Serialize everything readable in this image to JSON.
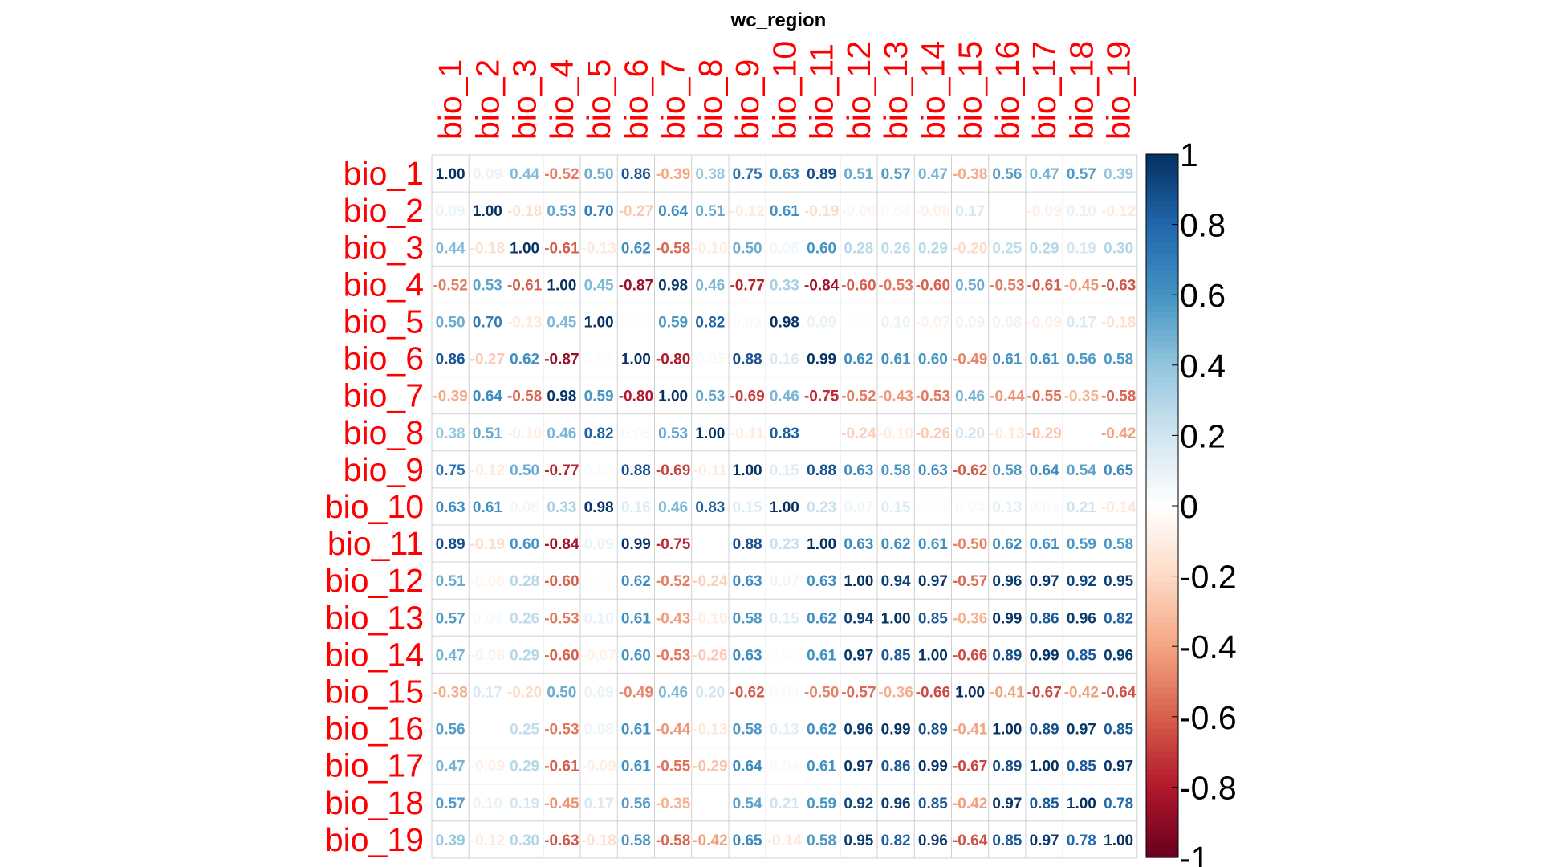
{
  "chart_data": {
    "type": "heatmap",
    "title": "wc_region",
    "labels": [
      "bio_1",
      "bio_2",
      "bio_3",
      "bio_4",
      "bio_5",
      "bio_6",
      "bio_7",
      "bio_8",
      "bio_9",
      "bio_10",
      "bio_11",
      "bio_12",
      "bio_13",
      "bio_14",
      "bio_15",
      "bio_16",
      "bio_17",
      "bio_18",
      "bio_19"
    ],
    "matrix": [
      [
        1.0,
        0.09,
        0.44,
        -0.52,
        0.5,
        0.86,
        -0.39,
        0.38,
        0.75,
        0.63,
        0.89,
        0.51,
        0.57,
        0.47,
        -0.38,
        0.56,
        0.47,
        0.57,
        0.39
      ],
      [
        0.09,
        1.0,
        -0.18,
        0.53,
        0.7,
        -0.27,
        0.64,
        0.51,
        -0.12,
        0.61,
        -0.19,
        -0.06,
        0.04,
        -0.08,
        0.17,
        0.0,
        -0.09,
        0.1,
        -0.12
      ],
      [
        0.44,
        -0.18,
        1.0,
        -0.61,
        -0.13,
        0.62,
        -0.58,
        -0.1,
        0.5,
        0.06,
        0.6,
        0.28,
        0.26,
        0.29,
        -0.2,
        0.25,
        0.29,
        0.19,
        0.3
      ],
      [
        -0.52,
        0.53,
        -0.61,
        1.0,
        0.45,
        -0.87,
        0.98,
        0.46,
        -0.77,
        0.33,
        -0.84,
        -0.6,
        -0.53,
        -0.6,
        0.5,
        -0.53,
        -0.61,
        -0.45,
        -0.63
      ],
      [
        0.5,
        0.7,
        -0.13,
        0.45,
        1.0,
        0.02,
        0.59,
        0.82,
        0.03,
        0.98,
        0.09,
        0.01,
        0.1,
        -0.07,
        0.09,
        0.08,
        -0.09,
        0.17,
        -0.18
      ],
      [
        0.86,
        -0.27,
        0.62,
        -0.87,
        0.02,
        1.0,
        -0.8,
        0.05,
        0.88,
        0.16,
        0.99,
        0.62,
        0.61,
        0.6,
        -0.49,
        0.61,
        0.61,
        0.56,
        0.58
      ],
      [
        -0.39,
        0.64,
        -0.58,
        0.98,
        0.59,
        -0.8,
        1.0,
        0.53,
        -0.69,
        0.46,
        -0.75,
        -0.52,
        -0.43,
        -0.53,
        0.46,
        -0.44,
        -0.55,
        -0.35,
        -0.58
      ],
      [
        0.38,
        0.51,
        -0.1,
        0.46,
        0.82,
        0.05,
        0.53,
        1.0,
        -0.11,
        0.83,
        0.0,
        -0.24,
        -0.1,
        -0.26,
        0.2,
        -0.13,
        -0.29,
        0.0,
        -0.42
      ],
      [
        0.75,
        -0.12,
        0.5,
        -0.77,
        0.03,
        0.88,
        -0.69,
        -0.11,
        1.0,
        0.15,
        0.88,
        0.63,
        0.58,
        0.63,
        -0.62,
        0.58,
        0.64,
        0.54,
        0.65
      ],
      [
        0.63,
        0.61,
        0.06,
        0.33,
        0.98,
        0.16,
        0.46,
        0.83,
        0.15,
        1.0,
        0.23,
        0.07,
        0.15,
        0.02,
        0.04,
        0.13,
        0.04,
        0.21,
        -0.14
      ],
      [
        0.89,
        -0.19,
        0.6,
        -0.84,
        0.09,
        0.99,
        -0.75,
        0.0,
        0.88,
        0.23,
        1.0,
        0.63,
        0.62,
        0.61,
        -0.5,
        0.62,
        0.61,
        0.59,
        0.58
      ],
      [
        0.51,
        -0.06,
        0.28,
        -0.6,
        0.01,
        0.62,
        -0.52,
        -0.24,
        0.63,
        0.07,
        0.63,
        1.0,
        0.94,
        0.97,
        -0.57,
        0.96,
        0.97,
        0.92,
        0.95
      ],
      [
        0.57,
        0.04,
        0.26,
        -0.53,
        0.1,
        0.61,
        -0.43,
        -0.1,
        0.58,
        0.15,
        0.62,
        0.94,
        1.0,
        0.85,
        -0.36,
        0.99,
        0.86,
        0.96,
        0.82
      ],
      [
        0.47,
        -0.08,
        0.29,
        -0.6,
        -0.07,
        0.6,
        -0.53,
        -0.26,
        0.63,
        0.02,
        0.61,
        0.97,
        0.85,
        1.0,
        -0.66,
        0.89,
        0.99,
        0.85,
        0.96
      ],
      [
        -0.38,
        0.17,
        -0.2,
        0.5,
        0.09,
        -0.49,
        0.46,
        0.2,
        -0.62,
        0.04,
        -0.5,
        -0.57,
        -0.36,
        -0.66,
        1.0,
        -0.41,
        -0.67,
        -0.42,
        -0.64
      ],
      [
        0.56,
        0.0,
        0.25,
        -0.53,
        0.08,
        0.61,
        -0.44,
        -0.13,
        0.58,
        0.13,
        0.62,
        0.96,
        0.99,
        0.89,
        -0.41,
        1.0,
        0.89,
        0.97,
        0.85
      ],
      [
        0.47,
        -0.09,
        0.29,
        -0.61,
        -0.09,
        0.61,
        -0.55,
        -0.29,
        0.64,
        0.04,
        0.61,
        0.97,
        0.86,
        0.99,
        -0.67,
        0.89,
        1.0,
        0.85,
        0.97
      ],
      [
        0.57,
        0.1,
        0.19,
        -0.45,
        0.17,
        0.56,
        -0.35,
        0.0,
        0.54,
        0.21,
        0.59,
        0.92,
        0.96,
        0.85,
        -0.42,
        0.97,
        0.85,
        1.0,
        0.78
      ],
      [
        0.39,
        -0.12,
        0.3,
        -0.63,
        -0.18,
        0.58,
        -0.58,
        -0.42,
        0.65,
        -0.14,
        0.58,
        0.95,
        0.82,
        0.96,
        -0.64,
        0.85,
        0.97,
        0.78,
        1.0
      ]
    ],
    "colorbar": {
      "range": [
        -1,
        1
      ],
      "ticks": [
        1,
        0.8,
        0.6,
        0.4,
        0.2,
        0,
        -0.2,
        -0.4,
        -0.6,
        -0.8,
        -1
      ],
      "tick_labels": [
        "1",
        "0.8",
        "0.6",
        "0.4",
        "0.2",
        "0",
        "-0.2",
        "-0.4",
        "-0.6",
        "-0.8",
        "-1"
      ],
      "colormap": "RdBu",
      "colors": [
        "#67001f",
        "#b2182b",
        "#d6604d",
        "#f4a582",
        "#fddbc7",
        "#ffffff",
        "#d1e5f0",
        "#92c5de",
        "#4393c3",
        "#2166ac",
        "#053061"
      ]
    },
    "label_color": "#ff0000",
    "grid": true
  }
}
